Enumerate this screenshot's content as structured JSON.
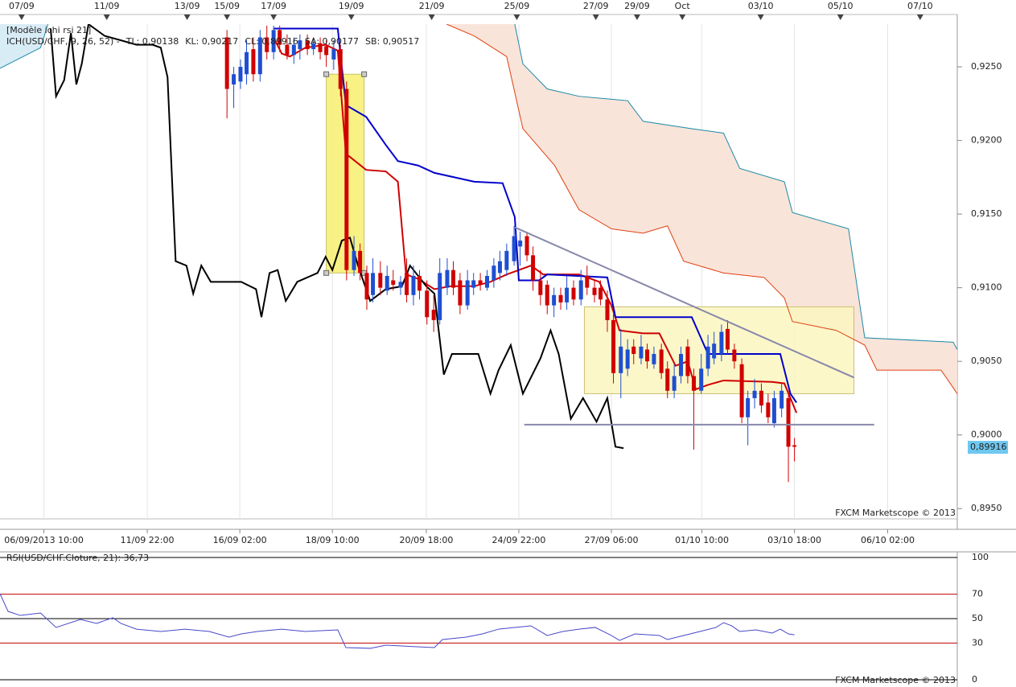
{
  "chart_data": [
    {
      "type": "candlestick",
      "legend_title": "[Modèle ichi rsi 21]",
      "legend": [
        {
          "text": "ICH(USD/CHF, 9, 26, 52) -",
          "color": "#d00000"
        },
        {
          "text": "TL: 0,90138",
          "color": "#d00000",
          "x": [
            40.5,
            41.7,
            42.9,
            45.2,
            48.2,
            50.0,
            51.2,
            54.2,
            57.1,
            58.9,
            60.1,
            61.9,
            64.3,
            66.7,
            70.2,
            72.6,
            75.0,
            76.8,
            78.6,
            80.4,
            85.7,
            88.7,
            90.5,
            91.7,
            95.2,
            97.6,
            100.0,
            101.8,
            103.0,
            104.8,
            107.1,
            114.3,
            116.1,
            117.9
          ],
          "values": [
            0.927,
            0.9259,
            0.9257,
            0.9263,
            0.9265,
            0.9261,
            0.9191,
            0.918,
            0.9179,
            0.9172,
            0.9109,
            0.9106,
            0.9099,
            0.9101,
            0.9101,
            0.9104,
            0.9109,
            0.9112,
            0.9115,
            0.9109,
            0.9109,
            0.9104,
            0.9088,
            0.9071,
            0.9069,
            0.9069,
            0.9047,
            0.905,
            0.9031,
            0.9034,
            0.9037,
            0.9036,
            0.9035,
            0.9015
          ]
        },
        {
          "text": "KL: 0,90217",
          "color": "#0000cc",
          "x": [
            40.5,
            50.0,
            51.2,
            54.2,
            57.1,
            58.9,
            61.9,
            64.3,
            70.2,
            74.4,
            76.2,
            76.8,
            79.8,
            81.0,
            89.9,
            91.1,
            102.4,
            104.8,
            115.5,
            117.0,
            117.9
          ],
          "values": [
            0.9276,
            0.9276,
            0.9224,
            0.9216,
            0.9197,
            0.9186,
            0.9183,
            0.9178,
            0.9172,
            0.9171,
            0.9148,
            0.9105,
            0.9105,
            0.9109,
            0.9107,
            0.908,
            0.908,
            0.9055,
            0.9055,
            0.9028,
            0.9022
          ]
        },
        {
          "text": "CL: 0,89916",
          "color": "#000000",
          "x": [
            7.5,
            8.3,
            9.5,
            10.5,
            11.3,
            12.1,
            13.1,
            15.5,
            17.9,
            20.2,
            22.6,
            23.8,
            24.8,
            26.0,
            27.6,
            28.6,
            29.8,
            31.2,
            35.7,
            37.9,
            38.7,
            39.9,
            41.1,
            42.3,
            44.0,
            47.0,
            48.2,
            49.2,
            50.6,
            51.8,
            53.0,
            54.8,
            57.1,
            59.5,
            60.7,
            63.1,
            64.3,
            65.7,
            66.9,
            70.8,
            72.6,
            73.8,
            75.6,
            77.4,
            80.0,
            81.5,
            82.7,
            84.5,
            86.3,
            88.3,
            89.9,
            91.1,
            92.3
          ],
          "values": [
            0.9276,
            0.923,
            0.9241,
            0.9273,
            0.9238,
            0.9252,
            0.9279,
            0.9271,
            0.9268,
            0.9265,
            0.9265,
            0.9263,
            0.9243,
            0.9118,
            0.9115,
            0.9096,
            0.9115,
            0.9104,
            0.9104,
            0.9099,
            0.908,
            0.911,
            0.9112,
            0.9091,
            0.9104,
            0.911,
            0.9121,
            0.9112,
            0.9132,
            0.9134,
            0.9115,
            0.9091,
            0.9099,
            0.9101,
            0.9115,
            0.9101,
            0.9096,
            0.9041,
            0.9055,
            0.9055,
            0.9028,
            0.9044,
            0.9061,
            0.9028,
            0.9052,
            0.9071,
            0.9055,
            0.9011,
            0.9025,
            0.9009,
            0.9025,
            0.8992,
            0.8991
          ]
        },
        {
          "text": "SA: 0,90177",
          "color": "#e04010",
          "x": [
            66.1,
            70.2,
            75.0,
            77.4,
            82.1,
            85.7,
            90.5,
            95.2,
            98.8,
            101.2,
            107.1,
            113.1,
            116.1,
            117.3,
            123.8,
            128.0,
            129.8,
            139.3,
            141.7
          ],
          "values": [
            0.9279,
            0.9271,
            0.9257,
            0.9208,
            0.9183,
            0.9153,
            0.914,
            0.9137,
            0.9142,
            0.9118,
            0.911,
            0.9107,
            0.9093,
            0.9077,
            0.9071,
            0.9061,
            0.9044,
            0.9044,
            0.9028
          ]
        },
        {
          "text": "SB: 0,90517",
          "color": "#1a8aa8",
          "x": [
            0,
            6.0,
            7.1,
            40,
            76.2,
            77.4,
            81.0,
            85.7,
            92.9,
            95.2,
            102.4,
            107.1,
            109.5,
            116.1,
            117.3,
            125.6,
            128.0,
            141.1,
            141.7
          ],
          "values": [
            0.9249,
            0.9263,
            0.9279,
            null,
            0.9279,
            0.9252,
            0.9235,
            0.923,
            0.9227,
            0.9213,
            0.9208,
            0.9205,
            0.9181,
            0.9172,
            0.9151,
            0.914,
            0.9066,
            0.9063,
            0.9058
          ]
        }
      ],
      "cloud_colors": [
        "#f9e4da",
        "#d8ecf6"
      ],
      "x": [
        33.6,
        34.6,
        35.6,
        36.5,
        37.5,
        38.5,
        39.5,
        40.5,
        41.4,
        42.5,
        43.5,
        44.4,
        45.5,
        46.4,
        47.4,
        48.3,
        49.4,
        50.4,
        51.3,
        52.4,
        53.3,
        54.3,
        55.2,
        56.3,
        57.3,
        58.2,
        59.3,
        60.2,
        61.2,
        62.1,
        63.2,
        64.2,
        65.1,
        66.2,
        67.1,
        68.1,
        69.2,
        70.1,
        71.1,
        72.1,
        73.1,
        74.0,
        75.0,
        76.1,
        77.0,
        78.0,
        78.9,
        80.0,
        81.0,
        82.0,
        83.0,
        83.9,
        84.9,
        86.0,
        86.9,
        88.0,
        88.9,
        89.9,
        90.8,
        91.9,
        92.9,
        93.8,
        94.9,
        95.8,
        96.8,
        97.9,
        98.8,
        99.8,
        100.8,
        101.8,
        102.7,
        103.8,
        104.8,
        105.7,
        106.8,
        107.7,
        108.7,
        109.8,
        110.7,
        111.7,
        112.7,
        113.7,
        114.6,
        115.7,
        116.7,
        117.6
      ],
      "open": [
        0.927,
        0.9238,
        0.924,
        0.9245,
        0.9262,
        0.9245,
        0.927,
        0.926,
        0.9275,
        0.9265,
        0.9258,
        0.9262,
        0.9268,
        0.9262,
        0.9266,
        0.9264,
        0.9255,
        0.9262,
        0.9235,
        0.9112,
        0.9125,
        0.911,
        0.9095,
        0.911,
        0.9098,
        0.9105,
        0.91,
        0.911,
        0.9095,
        0.9108,
        0.9098,
        0.9085,
        0.9078,
        0.91,
        0.9112,
        0.9105,
        0.9088,
        0.91,
        0.9105,
        0.91,
        0.9105,
        0.911,
        0.9112,
        0.9118,
        0.9128,
        0.9135,
        0.9122,
        0.9105,
        0.9102,
        0.9088,
        0.9095,
        0.909,
        0.91,
        0.9092,
        0.9108,
        0.91,
        0.91,
        0.9092,
        0.9078,
        0.9042,
        0.9045,
        0.906,
        0.9052,
        0.9058,
        0.9048,
        0.9058,
        0.9045,
        0.903,
        0.904,
        0.906,
        0.904,
        0.903,
        0.9045,
        0.9052,
        0.9055,
        0.9072,
        0.9058,
        0.9048,
        0.9012,
        0.9025,
        0.903,
        0.9022,
        0.9008,
        0.9018,
        0.9025,
        0.8993
      ],
      "high": [
        0.9275,
        0.925,
        0.9255,
        0.9268,
        0.927,
        0.9275,
        0.9278,
        0.9278,
        0.9278,
        0.9272,
        0.927,
        0.9272,
        0.9272,
        0.927,
        0.927,
        0.9268,
        0.9268,
        0.9265,
        0.924,
        0.9135,
        0.913,
        0.9115,
        0.912,
        0.9118,
        0.9115,
        0.9112,
        0.9108,
        0.912,
        0.9115,
        0.9112,
        0.9105,
        0.9095,
        0.912,
        0.912,
        0.9118,
        0.911,
        0.9112,
        0.911,
        0.911,
        0.9112,
        0.912,
        0.9125,
        0.913,
        0.9142,
        0.9138,
        0.9138,
        0.9128,
        0.9112,
        0.9105,
        0.91,
        0.91,
        0.9108,
        0.9105,
        0.9112,
        0.9115,
        0.9105,
        0.9105,
        0.9098,
        0.9082,
        0.9072,
        0.9065,
        0.9065,
        0.9068,
        0.9062,
        0.906,
        0.9062,
        0.905,
        0.9048,
        0.906,
        0.9065,
        0.9045,
        0.9055,
        0.9068,
        0.907,
        0.9075,
        0.9078,
        0.9062,
        0.9052,
        0.903,
        0.9038,
        0.9035,
        0.9028,
        0.903,
        0.9035,
        0.903,
        0.8998
      ],
      "low": [
        0.9215,
        0.9222,
        0.9235,
        0.9238,
        0.924,
        0.924,
        0.9255,
        0.9255,
        0.926,
        0.9255,
        0.9252,
        0.9255,
        0.9258,
        0.9258,
        0.9255,
        0.925,
        0.9248,
        0.923,
        0.9105,
        0.9108,
        0.9105,
        0.9085,
        0.909,
        0.9095,
        0.9095,
        0.9098,
        0.9095,
        0.909,
        0.9088,
        0.9092,
        0.9075,
        0.907,
        0.9075,
        0.9095,
        0.9095,
        0.9082,
        0.9085,
        0.9095,
        0.9098,
        0.9098,
        0.91,
        0.9105,
        0.9108,
        0.9115,
        0.9115,
        0.9118,
        0.9098,
        0.9088,
        0.9082,
        0.908,
        0.9085,
        0.9085,
        0.9088,
        0.9088,
        0.9095,
        0.909,
        0.9088,
        0.907,
        0.9035,
        0.9025,
        0.904,
        0.9048,
        0.9048,
        0.9045,
        0.9045,
        0.9038,
        0.9025,
        0.9025,
        0.9035,
        0.9035,
        0.899,
        0.9028,
        0.904,
        0.9048,
        0.905,
        0.9055,
        0.9045,
        0.9008,
        0.8993,
        0.9018,
        0.9015,
        0.9008,
        0.9005,
        0.9012,
        0.8968,
        0.8982
      ],
      "close": [
        0.9235,
        0.9245,
        0.925,
        0.926,
        0.9245,
        0.927,
        0.926,
        0.9275,
        0.9265,
        0.9258,
        0.9265,
        0.9268,
        0.9262,
        0.9266,
        0.926,
        0.9258,
        0.9262,
        0.9235,
        0.9112,
        0.9125,
        0.911,
        0.9092,
        0.911,
        0.91,
        0.9108,
        0.9102,
        0.9104,
        0.9095,
        0.9108,
        0.9098,
        0.908,
        0.9078,
        0.911,
        0.9112,
        0.91,
        0.9088,
        0.9105,
        0.9105,
        0.9102,
        0.9108,
        0.9115,
        0.9118,
        0.9125,
        0.9135,
        0.9132,
        0.9122,
        0.9105,
        0.9095,
        0.9088,
        0.9095,
        0.909,
        0.91,
        0.9092,
        0.9105,
        0.91,
        0.9095,
        0.9092,
        0.9078,
        0.9042,
        0.906,
        0.9058,
        0.9055,
        0.906,
        0.905,
        0.9055,
        0.9042,
        0.903,
        0.904,
        0.9055,
        0.904,
        0.903,
        0.9045,
        0.906,
        0.9062,
        0.907,
        0.9058,
        0.905,
        0.9012,
        0.9025,
        0.903,
        0.902,
        0.9012,
        0.9025,
        0.903,
        0.8992,
        0.8992
      ],
      "up_color": "#1f4fd0",
      "down_color": "#d10000",
      "rects": [
        {
          "x": [
            48.3,
            53.9
          ],
          "y": [
            0.9245,
            0.911
          ]
        },
        {
          "x": [
            86.5,
            126.4
          ],
          "y": [
            0.9087,
            0.9028
          ]
        }
      ],
      "rect_colors": [
        "#f7ef6e",
        "#fbf6c0"
      ],
      "trendlines": [
        {
          "x": [
            76.2,
            126.4
          ],
          "y": [
            0.9141,
            0.9039
          ]
        },
        {
          "x": [
            77.6,
            129.4
          ],
          "y": [
            0.9007,
            0.9007
          ]
        }
      ],
      "trendline_color": "#8888aa",
      "last_price": {
        "value": 0.89916,
        "label": "0,89916"
      },
      "xlim": [
        0,
        141.7
      ],
      "ylim": [
        0.8943,
        0.9279
      ],
      "yticks": [
        {
          "value": 0.895,
          "label": "0,8950"
        },
        {
          "value": 0.9,
          "label": "0,9000"
        },
        {
          "value": 0.905,
          "label": "0,9050"
        },
        {
          "value": 0.91,
          "label": "0,9100"
        },
        {
          "value": 0.915,
          "label": "0,9150"
        },
        {
          "value": 0.92,
          "label": "0,9200"
        },
        {
          "value": 0.925,
          "label": "0,9250"
        }
      ],
      "xticks": [
        {
          "value": 6.5,
          "label": "06/09/2013 10:00"
        },
        {
          "value": 21.8,
          "label": "11/09 22:00"
        },
        {
          "value": 35.5,
          "label": "16/09 02:00"
        },
        {
          "value": 49.2,
          "label": "18/09 10:00"
        },
        {
          "value": 63.1,
          "label": "20/09 18:00"
        },
        {
          "value": 76.8,
          "label": "24/09 22:00"
        },
        {
          "value": 90.5,
          "label": "27/09 06:00"
        },
        {
          "value": 103.9,
          "label": "01/10 10:00"
        },
        {
          "value": 117.6,
          "label": "03/10 18:00"
        },
        {
          "value": 131.4,
          "label": "06/10 02:00"
        }
      ],
      "top_xticks": [
        {
          "value": 3.2,
          "label": "07/09"
        },
        {
          "value": 15.8,
          "label": "11/09"
        },
        {
          "value": 27.7,
          "label": "13/09"
        },
        {
          "value": 33.6,
          "label": "15/09"
        },
        {
          "value": 40.5,
          "label": "17/09"
        },
        {
          "value": 52.0,
          "label": "19/09"
        },
        {
          "value": 63.9,
          "label": "21/09"
        },
        {
          "value": 76.5,
          "label": "25/09"
        },
        {
          "value": 88.2,
          "label": "27/09"
        },
        {
          "value": 94.3,
          "label": "29/09"
        },
        {
          "value": 101.0,
          "label": "Oct"
        },
        {
          "value": 112.6,
          "label": "03/10"
        },
        {
          "value": 124.4,
          "label": "05/10"
        },
        {
          "value": 136.2,
          "label": "07/10"
        }
      ],
      "watermark": "FXCM Marketscope © 2013"
    },
    {
      "type": "line",
      "title": "RSI(USD/CHF.Cloture, 21): 36,73",
      "color": "#4848c8",
      "x": [
        0,
        1.2,
        3.0,
        6.0,
        8.3,
        11.9,
        14.3,
        16.7,
        17.9,
        20.2,
        23.8,
        27.4,
        31.0,
        33.9,
        35.7,
        38.1,
        41.7,
        45.2,
        50.0,
        51.2,
        54.8,
        57.1,
        59.5,
        64.3,
        65.5,
        69.0,
        71.4,
        73.8,
        76.2,
        78.6,
        81.0,
        83.3,
        85.7,
        88.1,
        90.5,
        91.7,
        94.0,
        97.6,
        98.8,
        101.2,
        103.6,
        106.0,
        107.1,
        108.3,
        109.5,
        111.9,
        114.3,
        115.5,
        116.7,
        117.6
      ],
      "values": [
        70.4,
        55.9,
        52.6,
        54.6,
        42.8,
        49.3,
        46.1,
        50.7,
        46.1,
        41.4,
        39.5,
        41.4,
        39.5,
        34.9,
        37.5,
        39.5,
        41.4,
        39.5,
        40.8,
        26.3,
        25.7,
        28.3,
        27.6,
        26.3,
        32.9,
        34.9,
        37.5,
        41.4,
        42.8,
        44.1,
        36.2,
        39.5,
        41.4,
        42.8,
        36.2,
        32.2,
        37.5,
        36.2,
        32.9,
        36.2,
        39.5,
        42.8,
        46.7,
        44.1,
        39.5,
        40.8,
        38.2,
        41.4,
        37.5,
        36.73
      ],
      "xlim": [
        0,
        141.7
      ],
      "ylim": [
        0,
        100
      ],
      "yticks": [
        100,
        70,
        50,
        30,
        0
      ],
      "ytick_colors": [
        "#000000",
        "#c00000",
        "#000000",
        "#c00000",
        "#000000"
      ],
      "watermark": "FXCM Marketscope © 2013"
    }
  ]
}
